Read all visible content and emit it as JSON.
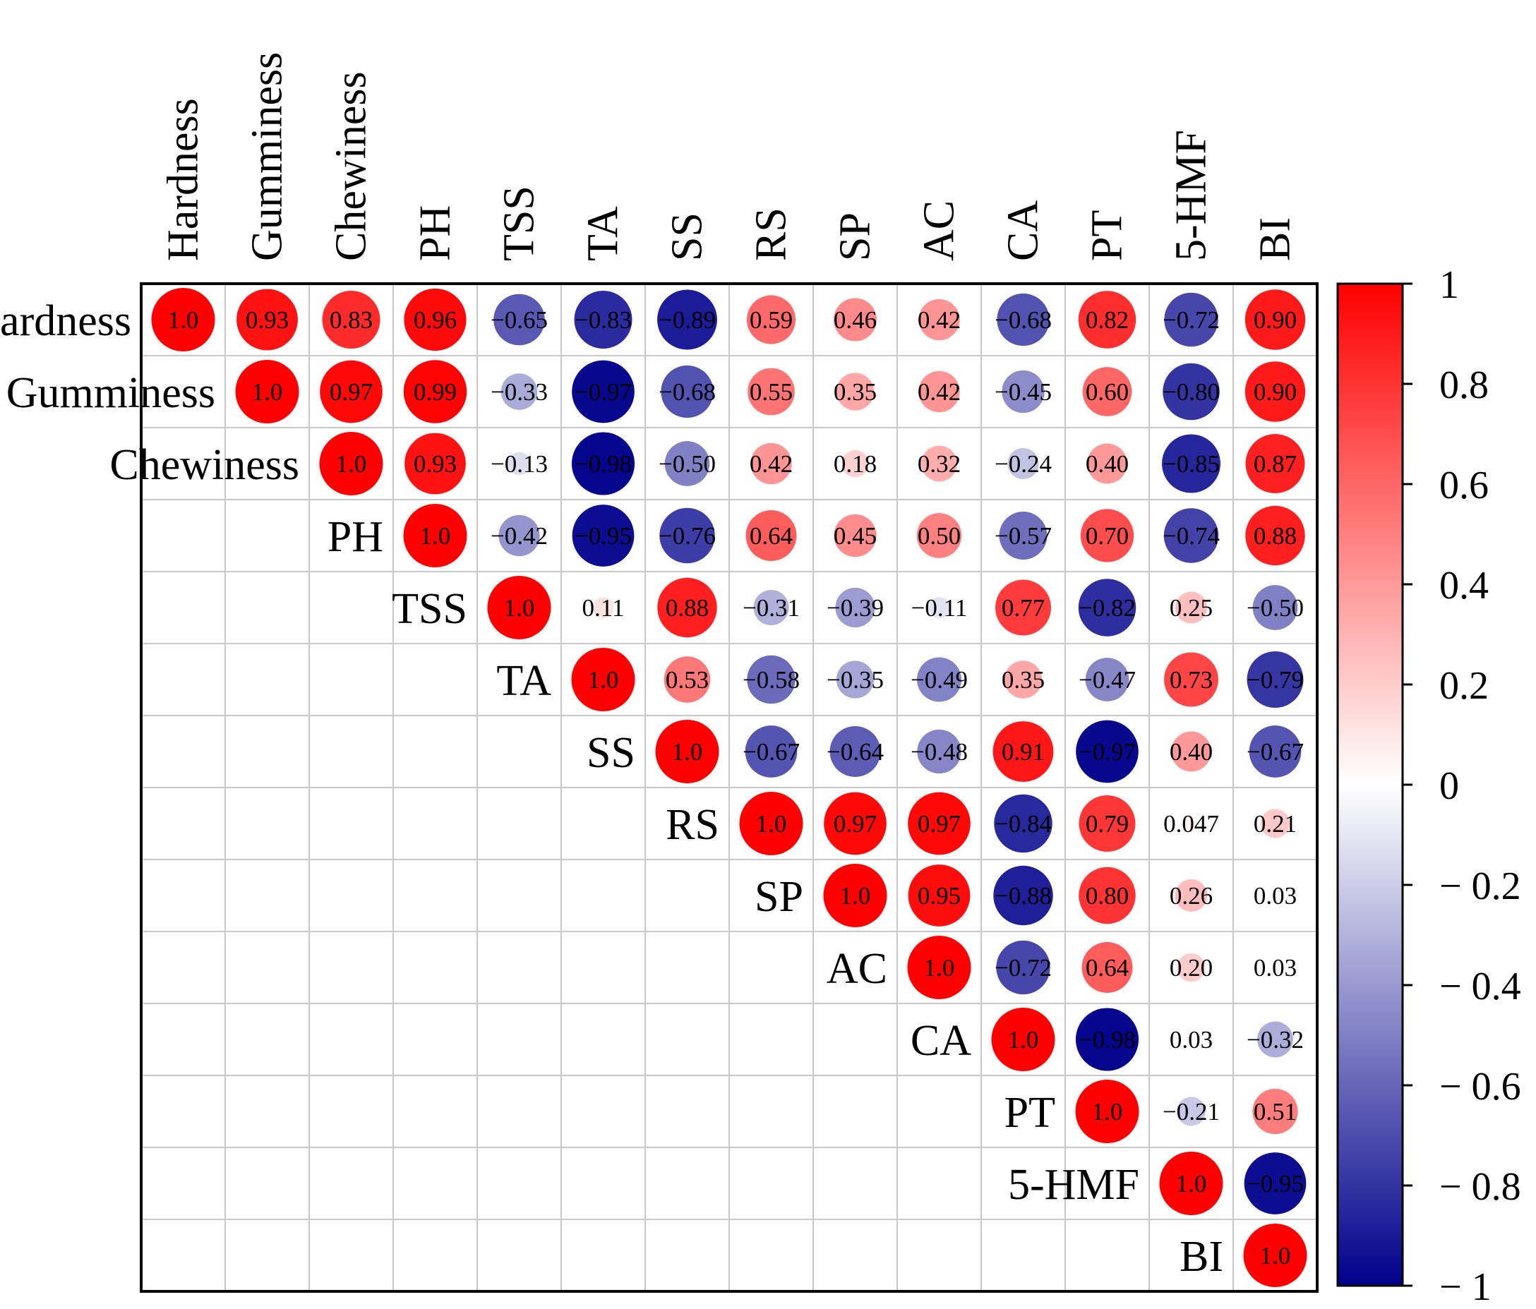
{
  "chart_data": {
    "type": "correlation-matrix",
    "variables": [
      "Hardness",
      "Gumminess",
      "Chewiness",
      "PH",
      "TSS",
      "TA",
      "SS",
      "RS",
      "SP",
      "AC",
      "CA",
      "PT",
      "5-HMF",
      "BI"
    ],
    "upper_triangle_rows": [
      [
        1.0,
        0.93,
        0.83,
        0.96,
        -0.65,
        -0.83,
        -0.89,
        0.59,
        0.46,
        0.42,
        -0.68,
        0.82,
        -0.72,
        0.9
      ],
      [
        1.0,
        0.97,
        0.99,
        -0.33,
        -0.97,
        -0.68,
        0.55,
        0.35,
        0.42,
        -0.45,
        0.6,
        -0.8,
        0.9
      ],
      [
        1.0,
        0.93,
        -0.13,
        -0.98,
        -0.5,
        0.42,
        0.18,
        0.32,
        -0.24,
        0.4,
        -0.85,
        0.87
      ],
      [
        1.0,
        -0.42,
        -0.95,
        -0.76,
        0.64,
        0.45,
        0.5,
        -0.57,
        0.7,
        -0.74,
        0.88
      ],
      [
        1.0,
        0.11,
        0.88,
        -0.31,
        -0.39,
        -0.11,
        0.77,
        -0.82,
        0.25,
        -0.5
      ],
      [
        1.0,
        0.53,
        -0.58,
        -0.35,
        -0.49,
        0.35,
        -0.47,
        0.73,
        -0.79
      ],
      [
        1.0,
        -0.67,
        -0.64,
        -0.48,
        0.91,
        -0.97,
        0.4,
        -0.67
      ],
      [
        1.0,
        0.97,
        0.97,
        -0.84,
        0.79,
        0.047,
        0.21
      ],
      [
        1.0,
        0.95,
        -0.88,
        0.8,
        0.26,
        0.03
      ],
      [
        1.0,
        -0.72,
        0.64,
        0.2,
        0.03
      ],
      [
        1.0,
        -0.98,
        0.03,
        -0.32
      ],
      [
        1.0,
        -0.21,
        0.51
      ],
      [
        1.0,
        -0.95
      ],
      [
        1.0
      ]
    ],
    "upper_triangle_labels": [
      [
        "1.0",
        "0.93",
        "0.83",
        "0.96",
        "−0.65",
        "−0.83",
        "−0.89",
        "0.59",
        "0.46",
        "0.42",
        "−0.68",
        "0.82",
        "−0.72",
        "0.90"
      ],
      [
        "1.0",
        "0.97",
        "0.99",
        "−0.33",
        "−0.97",
        "−0.68",
        "0.55",
        "0.35",
        "0.42",
        "−0.45",
        "0.60",
        "−0.80",
        "0.90"
      ],
      [
        "1.0",
        "0.93",
        "−0.13",
        "−0.98",
        "−0.50",
        "0.42",
        "0.18",
        "0.32",
        "−0.24",
        "0.40",
        "−0.85",
        "0.87"
      ],
      [
        "1.0",
        "−0.42",
        "−0.95",
        "−0.76",
        "0.64",
        "0.45",
        "0.50",
        "−0.57",
        "0.70",
        "−0.74",
        "0.88"
      ],
      [
        "1.0",
        "0.11",
        "0.88",
        "−0.31",
        "−0.39",
        "−0.11",
        "0.77",
        "−0.82",
        "0.25",
        "−0.50"
      ],
      [
        "1.0",
        "0.53",
        "−0.58",
        "−0.35",
        "−0.49",
        "0.35",
        "−0.47",
        "0.73",
        "−0.79"
      ],
      [
        "1.0",
        "−0.67",
        "−0.64",
        "−0.48",
        "0.91",
        "−0.97",
        "0.40",
        "−0.67"
      ],
      [
        "1.0",
        "0.97",
        "0.97",
        "−0.84",
        "0.79",
        "0.047",
        "0.21"
      ],
      [
        "1.0",
        "0.95",
        "−0.88",
        "0.80",
        "0.26",
        "0.03"
      ],
      [
        "1.0",
        "−0.72",
        "0.64",
        "0.20",
        "0.03"
      ],
      [
        "1.0",
        "−0.98",
        "0.03",
        "−0.32"
      ],
      [
        "1.0",
        "−0.21",
        "0.51"
      ],
      [
        "1.0",
        "−0.95"
      ],
      [
        "1.0"
      ]
    ],
    "colorbar": {
      "range": [
        -1,
        1
      ],
      "ticks": [
        1,
        0.8,
        0.6,
        0.4,
        0.2,
        0,
        -0.2,
        -0.4,
        -0.6,
        -0.8,
        -1
      ],
      "tick_labels": [
        "1",
        "0.8",
        "0.6",
        "0.4",
        "0.2",
        "0",
        "− 0.2",
        "− 0.4",
        "− 0.6",
        "− 0.8",
        "− 1"
      ],
      "colors": {
        "negative": "#00008b",
        "zero": "#ffffff",
        "positive": "#ff0000"
      }
    },
    "grid": true
  }
}
